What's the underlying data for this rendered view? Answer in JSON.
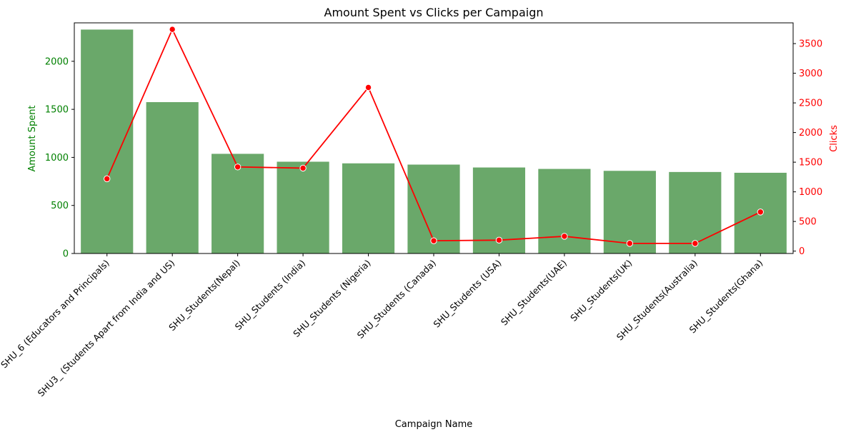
{
  "chart_data": {
    "type": "bar",
    "title": "Amount Spent vs Clicks per Campaign",
    "xlabel": "Campaign Name",
    "ylabel": "Amount Spent",
    "y2label": "Clicks",
    "categories": [
      "SHU_6 (Educators and Principals)",
      "SHU3_ (Students Apart from India and US)",
      "SHU_Students(Nepal)",
      "SHU_Students (India)",
      "SHU_Students (Nigeria)",
      "SHU_Students (Canada)",
      "SHU_Students (USA)",
      "SHU_Students(UAE)",
      "SHU_Students(UK)",
      "SHU_Students(Australia)",
      "SHU_Students(Ghana)"
    ],
    "series": [
      {
        "type": "bar",
        "axis": "left",
        "color": "#6aa86a",
        "values": [
          2330,
          1575,
          1037,
          955,
          938,
          925,
          895,
          880,
          860,
          848,
          840
        ]
      },
      {
        "type": "line",
        "axis": "right",
        "color": "#ff0000",
        "values": [
          1220,
          3740,
          1420,
          1400,
          2760,
          175,
          185,
          250,
          130,
          130,
          660
        ]
      }
    ],
    "ylim": [
      0,
      2400
    ],
    "y2lim": [
      -40,
      3850
    ],
    "yticks": [
      0,
      500,
      1000,
      1500,
      2000
    ],
    "y2ticks": [
      0,
      500,
      1000,
      1500,
      2000,
      2500,
      3000,
      3500
    ],
    "left_axis_color": "#008000",
    "right_axis_color": "#ff0000",
    "grid": false,
    "legend": "none"
  }
}
